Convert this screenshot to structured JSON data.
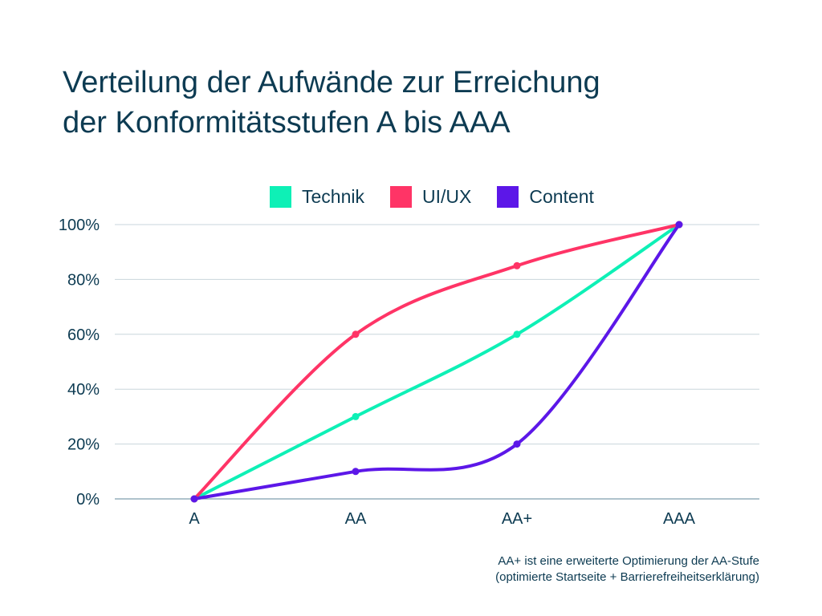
{
  "chart_data": {
    "type": "line",
    "title_lines": [
      "Verteilung der Aufwände zur Erreichung",
      "der Konformitätsstufen A bis AAA"
    ],
    "categories": [
      "A",
      "AA",
      "AA+",
      "AAA"
    ],
    "series": [
      {
        "name": "Technik",
        "color": "#0ef0b6",
        "values": [
          0,
          30,
          60,
          100
        ]
      },
      {
        "name": "UI/UX",
        "color": "#ff3466",
        "values": [
          0,
          60,
          85,
          100
        ]
      },
      {
        "name": "Content",
        "color": "#5c17e8",
        "values": [
          0,
          10,
          20,
          100
        ]
      }
    ],
    "ylim": [
      0,
      100
    ],
    "yticks": [
      "0%",
      "20%",
      "40%",
      "60%",
      "80%",
      "100%"
    ],
    "grid": true,
    "legend": "top",
    "smooth": true,
    "note": [
      "AA+ ist eine erweiterte Optimierung der AA-Stufe",
      "(optimierte Startseite + Barrierefreiheitserklärung)"
    ]
  }
}
